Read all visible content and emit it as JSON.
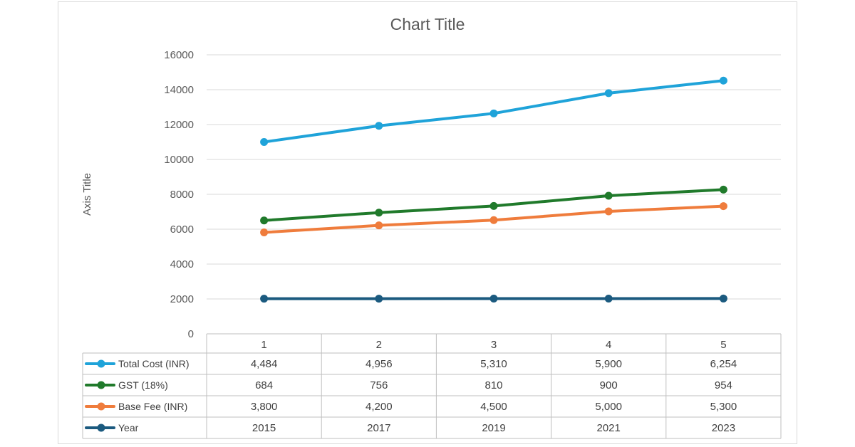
{
  "chart_data": {
    "type": "line",
    "title": "Chart Title",
    "ylabel": "Axis Title",
    "xlabel": "",
    "categories": [
      "1",
      "2",
      "3",
      "4",
      "5"
    ],
    "ylim": [
      0,
      16000
    ],
    "yticks": [
      "0",
      "2000",
      "4000",
      "6000",
      "8000",
      "10000",
      "12000",
      "14000",
      "16000"
    ],
    "grid": true,
    "legend": "data-table",
    "series": [
      {
        "name": "Total Cost (INR)",
        "color": "#1fa3d9",
        "values": [
          11000,
          11930,
          12640,
          13800,
          14520
        ],
        "table_values": [
          "4,484",
          "4,956",
          "5,310",
          "5,900",
          "6,254"
        ]
      },
      {
        "name": "GST (18%)",
        "color": "#207a2b",
        "values": [
          6500,
          6950,
          7330,
          7920,
          8270
        ],
        "table_values": [
          "684",
          "756",
          "810",
          "900",
          "954"
        ]
      },
      {
        "name": "Base Fee (INR)",
        "color": "#ef7c3c",
        "values": [
          5815,
          6217,
          6519,
          7021,
          7323
        ],
        "table_values": [
          "3,800",
          "4,200",
          "4,500",
          "5,000",
          "5,300"
        ]
      },
      {
        "name": "Year",
        "color": "#1b5a7f",
        "values": [
          2015,
          2017,
          2019,
          2021,
          2023
        ],
        "table_values": [
          "2015",
          "2017",
          "2019",
          "2021",
          "2023"
        ]
      }
    ]
  }
}
